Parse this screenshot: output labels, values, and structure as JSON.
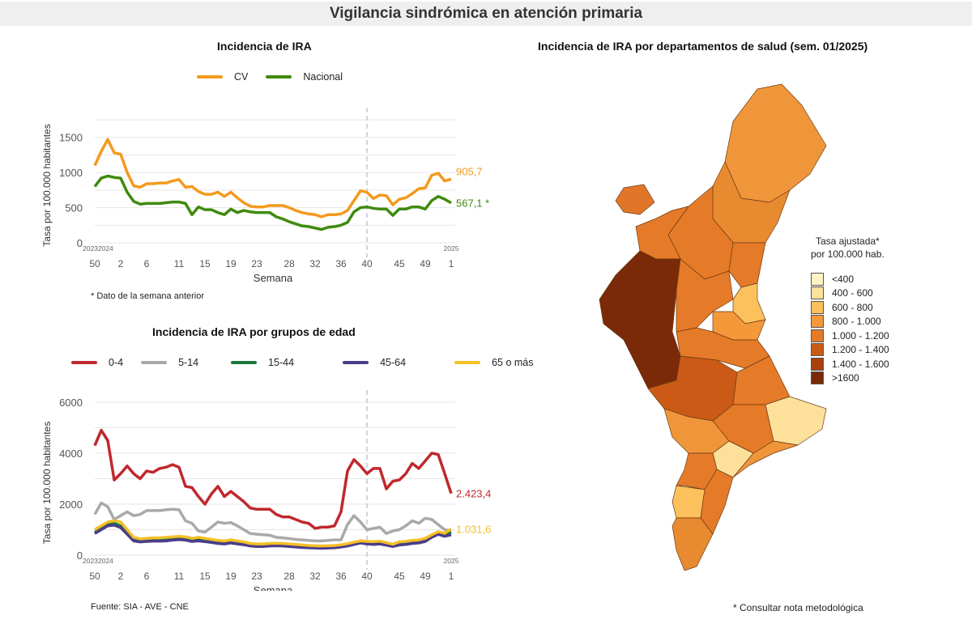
{
  "header": {
    "title": "Vigilancia sindrómica en atención primaria"
  },
  "footnotes": {
    "previous_week": "* Dato de la semana anterior",
    "source": "Fuente: SIA - AVE - CNE",
    "method_note": "* Consultar nota metodológica"
  },
  "chart_data": [
    {
      "type": "line",
      "title": "Incidencia de IRA",
      "xlabel": "Semana",
      "ylabel": "Tasa por 100.000 habitantes",
      "ylim": [
        0,
        1750
      ],
      "yticks": [
        "0",
        "500",
        "1000",
        "1500"
      ],
      "yticks_values": [
        0,
        500,
        1000,
        1500
      ],
      "grid": true,
      "legend": "top",
      "xtick_weeks": [
        "50",
        "2",
        "6",
        "11",
        "15",
        "19",
        "23",
        "28",
        "32",
        "36",
        "40",
        "45",
        "49",
        "1"
      ],
      "xtick_index": [
        0,
        4,
        8,
        13,
        17,
        21,
        25,
        30,
        34,
        38,
        42,
        47,
        51,
        55
      ],
      "year_labels": [
        "2023",
        "2024",
        "2025"
      ],
      "marker_week": "40",
      "series": [
        {
          "name": "CV",
          "color": "#f39a1e",
          "end_label": "905,7",
          "values": [
            1100,
            1300,
            1470,
            1280,
            1260,
            1000,
            810,
            790,
            840,
            840,
            850,
            850,
            880,
            900,
            790,
            800,
            730,
            690,
            690,
            720,
            660,
            720,
            640,
            570,
            520,
            510,
            510,
            530,
            530,
            530,
            500,
            460,
            430,
            410,
            400,
            370,
            400,
            400,
            410,
            460,
            600,
            740,
            720,
            630,
            680,
            670,
            540,
            620,
            640,
            700,
            770,
            780,
            960,
            990,
            880,
            905.7
          ]
        },
        {
          "name": "Nacional",
          "color": "#3f8a0f",
          "end_label": "567,1 *",
          "values": [
            800,
            920,
            950,
            930,
            920,
            720,
            590,
            550,
            560,
            560,
            560,
            570,
            580,
            580,
            560,
            400,
            510,
            470,
            470,
            430,
            400,
            480,
            430,
            460,
            440,
            430,
            430,
            430,
            370,
            340,
            300,
            270,
            240,
            230,
            210,
            190,
            220,
            230,
            250,
            290,
            440,
            500,
            510,
            490,
            480,
            480,
            390,
            480,
            480,
            510,
            510,
            480,
            600,
            660,
            620,
            567.1
          ]
        }
      ]
    },
    {
      "type": "line",
      "title": "Incidencia de IRA por grupos de edad",
      "xlabel": "Semana",
      "ylabel": "Tasa por 100.000 habitantes",
      "ylim": [
        0,
        6000
      ],
      "yticks": [
        "0",
        "2000",
        "4000",
        "6000"
      ],
      "yticks_values": [
        0,
        2000,
        4000,
        6000
      ],
      "grid": true,
      "legend": "top",
      "xtick_weeks": [
        "50",
        "2",
        "6",
        "11",
        "15",
        "19",
        "23",
        "28",
        "32",
        "36",
        "40",
        "45",
        "49",
        "1"
      ],
      "xtick_index": [
        0,
        4,
        8,
        13,
        17,
        21,
        25,
        30,
        34,
        38,
        42,
        47,
        51,
        55
      ],
      "year_labels": [
        "2023",
        "2024",
        "2025"
      ],
      "marker_week": "40",
      "series": [
        {
          "name": "0-4",
          "color": "#c0282d",
          "end_label": "2.423,4",
          "values": [
            4300,
            4900,
            4500,
            2950,
            3200,
            3500,
            3200,
            3000,
            3300,
            3250,
            3400,
            3450,
            3550,
            3450,
            2700,
            2650,
            2300,
            2000,
            2400,
            2700,
            2300,
            2500,
            2300,
            2100,
            1850,
            1800,
            1800,
            1800,
            1600,
            1500,
            1500,
            1400,
            1300,
            1250,
            1050,
            1100,
            1100,
            1150,
            1700,
            3300,
            3750,
            3500,
            3200,
            3400,
            3400,
            2600,
            2900,
            2950,
            3200,
            3600,
            3400,
            3700,
            4000,
            3950,
            3200,
            2423.4
          ]
        },
        {
          "name": "5-14",
          "color": "#a9a9a9",
          "values": [
            1600,
            2050,
            1900,
            1400,
            1550,
            1700,
            1550,
            1600,
            1750,
            1750,
            1750,
            1780,
            1800,
            1780,
            1350,
            1250,
            950,
            900,
            1100,
            1300,
            1250,
            1280,
            1150,
            1000,
            850,
            820,
            800,
            780,
            700,
            680,
            650,
            620,
            600,
            580,
            560,
            560,
            580,
            600,
            600,
            1200,
            1550,
            1300,
            1000,
            1050,
            1100,
            850,
            950,
            1000,
            1150,
            1350,
            1250,
            1450,
            1400,
            1200,
            1000,
            950
          ]
        },
        {
          "name": "15-44",
          "color": "#1a7a3a",
          "values": [
            900,
            1050,
            1200,
            1250,
            1150,
            900,
            650,
            600,
            620,
            640,
            640,
            650,
            680,
            700,
            680,
            620,
            650,
            620,
            580,
            540,
            520,
            560,
            520,
            480,
            420,
            400,
            400,
            420,
            430,
            420,
            400,
            380,
            360,
            350,
            340,
            330,
            340,
            350,
            380,
            420,
            480,
            560,
            520,
            500,
            520,
            460,
            400,
            480,
            500,
            540,
            560,
            620,
            780,
            900,
            820,
            900
          ]
        },
        {
          "name": "45-64",
          "color": "#4b3d8a",
          "values": [
            850,
            1000,
            1150,
            1180,
            1080,
            820,
            560,
            520,
            540,
            550,
            550,
            560,
            590,
            610,
            590,
            540,
            560,
            530,
            500,
            460,
            440,
            480,
            440,
            410,
            360,
            340,
            340,
            360,
            370,
            360,
            340,
            320,
            300,
            290,
            280,
            270,
            280,
            290,
            320,
            360,
            420,
            480,
            440,
            420,
            440,
            390,
            340,
            400,
            420,
            460,
            480,
            540,
            700,
            820,
            740,
            800
          ]
        },
        {
          "name": "65 o más",
          "color": "#f5bf26",
          "end_label": "1.031,6",
          "values": [
            1000,
            1150,
            1300,
            1350,
            1300,
            1000,
            700,
            640,
            660,
            680,
            680,
            700,
            720,
            740,
            720,
            660,
            700,
            660,
            620,
            580,
            560,
            600,
            560,
            520,
            460,
            440,
            440,
            460,
            470,
            460,
            440,
            420,
            400,
            380,
            370,
            360,
            370,
            380,
            410,
            450,
            510,
            560,
            540,
            530,
            550,
            490,
            430,
            520,
            540,
            580,
            600,
            660,
            800,
            920,
            860,
            1031.6
          ]
        }
      ]
    }
  ],
  "map": {
    "title": "Incidencia de IRA por departamentos de salud (sem. 01/2025)",
    "legend_title_1": "Tasa ajustada*",
    "legend_title_2": "por 100.000 hab.",
    "classes": [
      {
        "label": "<400",
        "color": "#fff4c4"
      },
      {
        "label": "400 - 600",
        "color": "#fde09a"
      },
      {
        "label": "600 - 800",
        "color": "#fcc15c"
      },
      {
        "label": "800 - 1.000",
        "color": "#f4983a"
      },
      {
        "label": "1.000 - 1.200",
        "color": "#e57a28"
      },
      {
        "label": "1.200 - 1.400",
        "color": "#cb5a16"
      },
      {
        "label": "1.400 - 1.600",
        "color": "#a8410d"
      },
      {
        "label": ">1600",
        "color": "#7a2a08"
      }
    ]
  }
}
